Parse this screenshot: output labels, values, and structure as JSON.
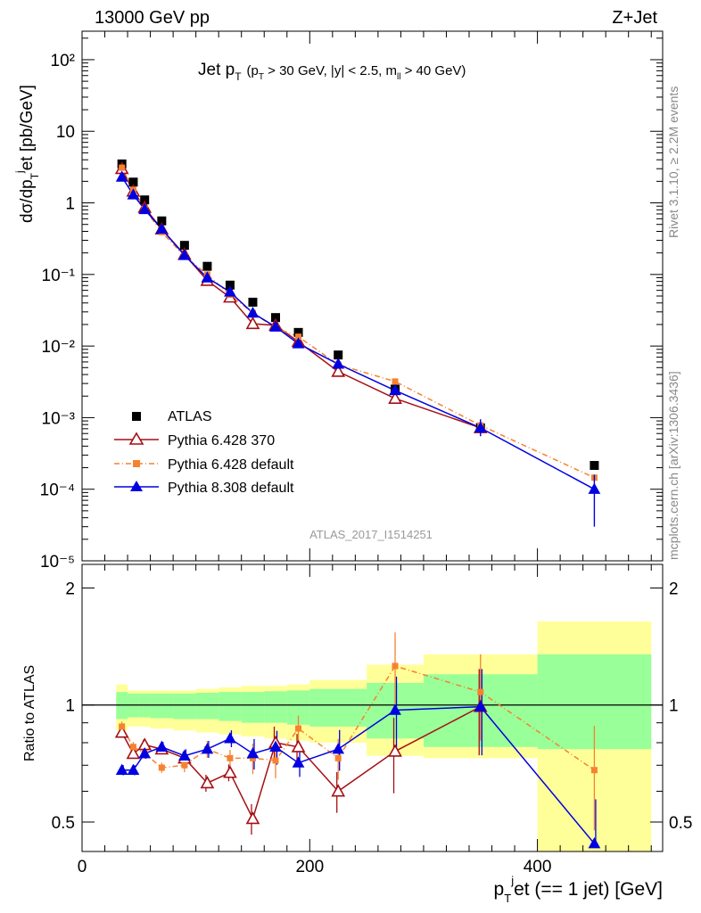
{
  "header": {
    "left": "13000 GeV pp",
    "right": "Z+Jet"
  },
  "side": {
    "top": "Rivet 3.1.10, ≥ 2.2M events",
    "bottom": "mcplots.cern.ch [arXiv:1306.3436]"
  },
  "analysis_id": "ATLAS_2017_I1514251",
  "upper_title": {
    "main": "Jet p",
    "sub": "T",
    "cuts": "(p",
    "cuts_sub": "T",
    "cuts_rest": " > 30 GeV, |y| < 2.5, m",
    "cuts_sub2": "ll",
    "cuts_end": " > 40 GeV)"
  },
  "ylabel_upper": "dσ/dpᵀʲet [pb/GeV]",
  "ylabel_lower": "Ratio to ATLAS",
  "xlabel": "pᵀʲet (== 1 jet) [GeV]",
  "colors": {
    "atlas": "#000000",
    "p6_370": "#a50f15",
    "p6_default": "#f58231",
    "p8": "#0000e0",
    "band_inner": "#99ff99",
    "band_outer": "#ffff99"
  },
  "chart_data": [
    {
      "type": "scatter",
      "panel": "upper",
      "scale": "log",
      "xlim": [
        0,
        510
      ],
      "ylim": [
        1e-05,
        250
      ],
      "x_ticks": [
        0,
        200,
        400
      ],
      "y_tick_labels": [
        "10⁻⁵",
        "10⁻⁴",
        "10⁻³",
        "10⁻²",
        "10⁻¹",
        "1",
        "10",
        "10²"
      ],
      "x": [
        35,
        45,
        55,
        70,
        90,
        110,
        130,
        150,
        170,
        190,
        225,
        275,
        350,
        450
      ],
      "series": [
        {
          "name": "ATLAS",
          "marker": "square",
          "values": [
            3.5,
            1.95,
            1.1,
            0.56,
            0.255,
            0.13,
            0.071,
            0.041,
            0.025,
            0.0155,
            0.0075,
            0.0025,
            0.00072,
            0.000215
          ]
        },
        {
          "name": "Pythia 6.428 370",
          "marker": "triangle-open",
          "values": [
            3.0,
            1.45,
            0.86,
            0.43,
            0.19,
            0.082,
            0.048,
            0.0205,
            0.0195,
            0.0115,
            0.0044,
            0.00185,
            0.00072,
            null
          ]
        },
        {
          "name": "Pythia 6.428 default",
          "marker": "square-small",
          "dashed": true,
          "values": [
            3.1,
            1.52,
            0.82,
            0.39,
            0.18,
            0.1,
            0.052,
            0.029,
            0.018,
            0.0135,
            0.0055,
            0.0032,
            0.00078,
            0.000145
          ]
        },
        {
          "name": "Pythia 8.308 default",
          "marker": "triangle",
          "values": [
            2.3,
            1.3,
            0.81,
            0.43,
            0.185,
            0.09,
            0.057,
            0.029,
            0.0185,
            0.0108,
            0.0056,
            0.0024,
            0.00072,
            0.0001
          ]
        }
      ]
    },
    {
      "type": "scatter",
      "panel": "lower",
      "xlim": [
        0,
        510
      ],
      "ylim": [
        0.42,
        2.3
      ],
      "x_ticks": [
        0,
        200,
        400
      ],
      "y_tick_labels": [
        "0.5",
        "1",
        "2"
      ],
      "x": [
        35,
        45,
        55,
        70,
        90,
        110,
        130,
        150,
        170,
        190,
        225,
        275,
        350,
        450
      ],
      "series": [
        {
          "name": "Pythia 6.428 370",
          "values": [
            0.85,
            0.75,
            0.79,
            0.77,
            0.73,
            0.63,
            0.67,
            0.51,
            0.8,
            0.78,
            0.6,
            0.76,
            0.99,
            null
          ]
        },
        {
          "name": "Pythia 6.428 default",
          "values": [
            0.88,
            0.78,
            0.75,
            0.69,
            0.7,
            0.77,
            0.73,
            0.73,
            0.72,
            0.87,
            0.73,
            1.26,
            1.08,
            0.68
          ]
        },
        {
          "name": "Pythia 8.308 default",
          "values": [
            0.68,
            0.68,
            0.75,
            0.78,
            0.74,
            0.77,
            0.82,
            0.75,
            0.78,
            0.71,
            0.77,
            0.97,
            0.99,
            0.44
          ]
        }
      ],
      "band_bins": [
        [
          30,
          40
        ],
        [
          40,
          50
        ],
        [
          50,
          60
        ],
        [
          60,
          80
        ],
        [
          80,
          100
        ],
        [
          100,
          120
        ],
        [
          120,
          140
        ],
        [
          140,
          160
        ],
        [
          160,
          180
        ],
        [
          180,
          200
        ],
        [
          200,
          250
        ],
        [
          250,
          300
        ],
        [
          300,
          400
        ],
        [
          400,
          500
        ]
      ],
      "band_inner": [
        [
          0.92,
          1.08
        ],
        [
          0.93,
          1.07
        ],
        [
          0.93,
          1.07
        ],
        [
          0.925,
          1.07
        ],
        [
          0.92,
          1.07
        ],
        [
          0.92,
          1.075
        ],
        [
          0.91,
          1.08
        ],
        [
          0.9,
          1.08
        ],
        [
          0.9,
          1.085
        ],
        [
          0.89,
          1.09
        ],
        [
          0.88,
          1.1
        ],
        [
          0.82,
          1.14
        ],
        [
          0.78,
          1.2
        ],
        [
          0.77,
          1.35
        ]
      ],
      "band_outer": [
        [
          0.86,
          1.13
        ],
        [
          0.88,
          1.09
        ],
        [
          0.88,
          1.09
        ],
        [
          0.87,
          1.09
        ],
        [
          0.86,
          1.09
        ],
        [
          0.85,
          1.1
        ],
        [
          0.84,
          1.11
        ],
        [
          0.83,
          1.12
        ],
        [
          0.82,
          1.12
        ],
        [
          0.81,
          1.13
        ],
        [
          0.8,
          1.16
        ],
        [
          0.74,
          1.27
        ],
        [
          0.73,
          1.35
        ],
        [
          0.42,
          1.64
        ]
      ]
    }
  ]
}
